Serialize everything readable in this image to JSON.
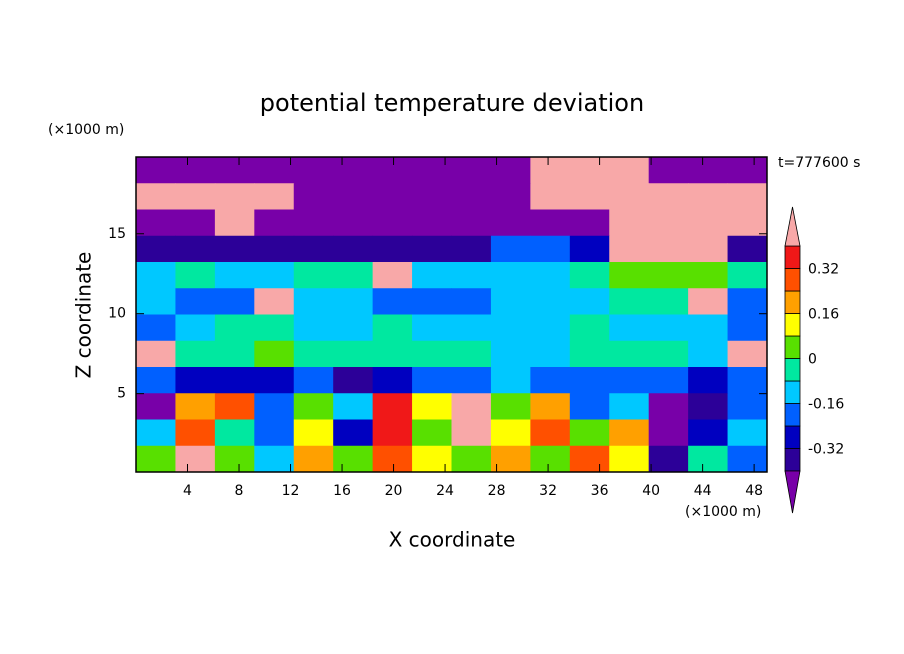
{
  "chart_data": {
    "type": "contour",
    "title": "potential temperature deviation",
    "x_label": "X coordinate",
    "y_label": "Z coordinate",
    "x_unit": "(×1000 m)",
    "y_unit": "(×1000 m)",
    "annotation": "t=777600 s",
    "xlim": [
      0,
      49
    ],
    "ylim": [
      0.1,
      19.8
    ],
    "xticks": [
      4,
      8,
      12,
      16,
      20,
      24,
      28,
      32,
      36,
      40,
      44,
      48
    ],
    "yticks": [
      5,
      10,
      15
    ],
    "levels": [
      -0.4,
      -0.32,
      -0.24,
      -0.16,
      -0.08,
      0,
      0.08,
      0.16,
      0.24,
      0.32,
      0.4
    ],
    "colors": [
      "#7800a8",
      "#2c0098",
      "#0000c0",
      "#0060ff",
      "#00c8ff",
      "#00e8a0",
      "#58e000",
      "#ffff00",
      "#ffa000",
      "#ff5000",
      "#f01818",
      "#f8a8a8"
    ],
    "colorbar_ticks": [
      -0.32,
      -0.16,
      0,
      0.16,
      0.32
    ],
    "z": [
      [
        -0.5,
        -0.5,
        -0.5,
        -0.5,
        -0.5,
        -0.5,
        -0.5,
        -0.5,
        -0.5,
        -0.5,
        0.5,
        0.5,
        0.5,
        -0.5,
        -0.5,
        -0.5
      ],
      [
        0.5,
        0.5,
        0.5,
        0.5,
        -0.5,
        -0.5,
        -0.5,
        -0.5,
        -0.5,
        -0.5,
        0.5,
        0.5,
        0.5,
        0.5,
        0.5,
        0.5
      ],
      [
        -0.5,
        -0.5,
        0.5,
        -0.5,
        -0.5,
        -0.5,
        -0.5,
        -0.5,
        -0.5,
        -0.5,
        -0.5,
        -0.5,
        0.5,
        0.5,
        0.5,
        0.5
      ],
      [
        -0.36,
        -0.36,
        -0.36,
        -0.36,
        -0.36,
        -0.36,
        -0.36,
        -0.36,
        -0.36,
        -0.2,
        -0.2,
        -0.28,
        0.5,
        0.5,
        0.5,
        -0.36
      ],
      [
        -0.12,
        -0.04,
        -0.12,
        -0.12,
        -0.04,
        -0.04,
        0.5,
        -0.12,
        -0.12,
        -0.12,
        -0.12,
        -0.04,
        0.04,
        0.04,
        0.04,
        -0.04
      ],
      [
        -0.12,
        -0.2,
        -0.2,
        0.5,
        -0.12,
        -0.12,
        -0.2,
        -0.2,
        -0.2,
        -0.12,
        -0.12,
        -0.12,
        -0.04,
        -0.04,
        0.5,
        -0.2
      ],
      [
        -0.2,
        -0.12,
        -0.04,
        -0.04,
        -0.12,
        -0.12,
        -0.04,
        -0.12,
        -0.12,
        -0.12,
        -0.12,
        -0.04,
        -0.12,
        -0.12,
        -0.12,
        -0.2
      ],
      [
        0.5,
        -0.04,
        -0.04,
        0.04,
        -0.04,
        -0.04,
        -0.04,
        -0.04,
        -0.04,
        -0.12,
        -0.12,
        -0.04,
        -0.04,
        -0.04,
        -0.12,
        0.5
      ],
      [
        -0.2,
        -0.28,
        -0.28,
        -0.28,
        -0.2,
        -0.36,
        -0.28,
        -0.2,
        -0.2,
        -0.12,
        -0.2,
        -0.2,
        -0.2,
        -0.2,
        -0.28,
        -0.2
      ],
      [
        -0.5,
        0.2,
        0.28,
        -0.2,
        0.04,
        -0.12,
        0.36,
        0.12,
        0.5,
        0.04,
        0.2,
        -0.2,
        -0.12,
        -0.5,
        -0.36,
        -0.2
      ],
      [
        -0.12,
        0.28,
        -0.04,
        -0.2,
        0.12,
        -0.28,
        0.36,
        0.04,
        0.5,
        0.12,
        0.28,
        0.04,
        0.2,
        -0.5,
        -0.28,
        -0.12
      ],
      [
        0.04,
        0.5,
        0.04,
        -0.12,
        0.2,
        0.04,
        0.28,
        0.12,
        0.04,
        0.2,
        0.04,
        0.28,
        0.12,
        -0.36,
        -0.04,
        -0.2
      ]
    ]
  }
}
